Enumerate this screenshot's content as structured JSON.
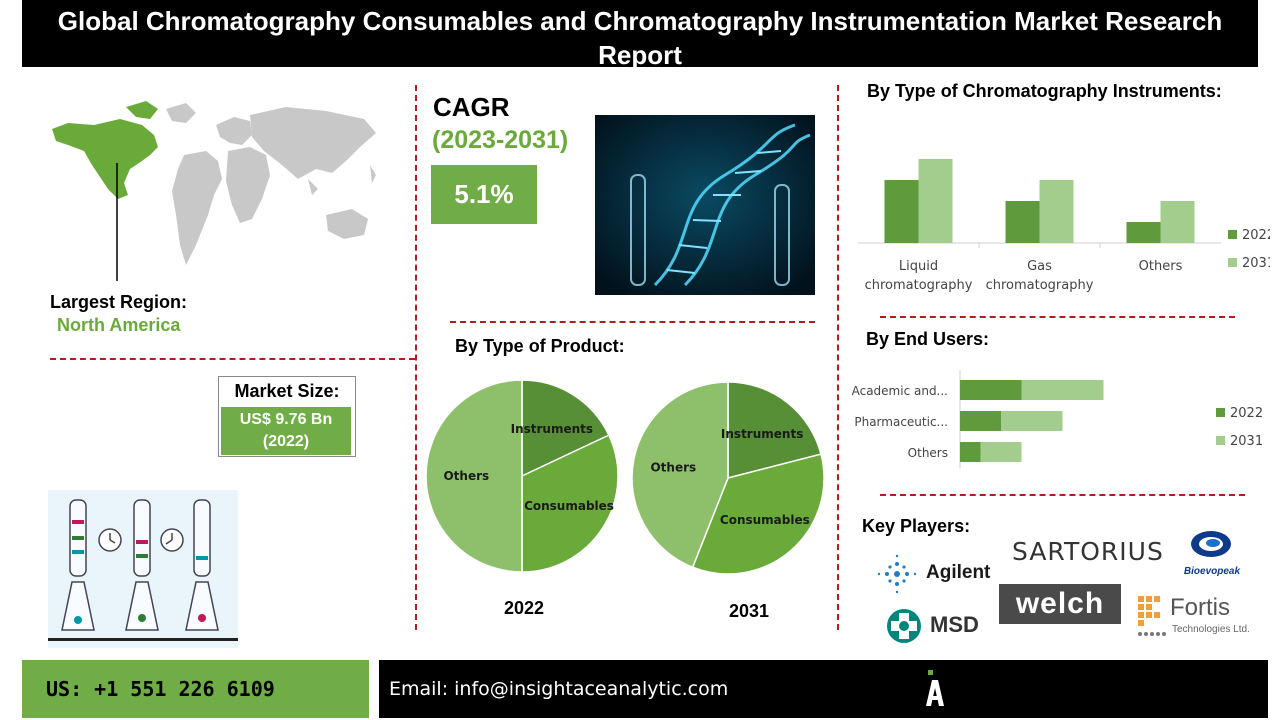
{
  "header": {
    "title": "Global Chromatography Consumables and Chromatography Instrumentation Market Research Report"
  },
  "region": {
    "label": "Largest Region:",
    "value": "North America"
  },
  "market_size": {
    "label": "Market Size:",
    "value_line1": "US$ 9.76 Bn",
    "value_line2": "(2022)"
  },
  "cagr": {
    "label": "CAGR",
    "period": "(2023-2031)",
    "value": "5.1%"
  },
  "sections": {
    "instruments_title": "By Type of Chromatography Instruments:",
    "end_users_title": "By End Users:",
    "product_title": "By Type of Product:",
    "key_players_title": "Key Players:"
  },
  "key_players": [
    {
      "name": "Agilent"
    },
    {
      "name": "SARTORIUS"
    },
    {
      "name": "Bioevopeak"
    },
    {
      "name": "MSD"
    },
    {
      "name": "welch"
    },
    {
      "name": "Fortis",
      "sub": "Technologies Ltd."
    }
  ],
  "colors": {
    "series_2022": "#5f9a3c",
    "series_2031": "#a3cd8d",
    "accent": "#70ad47",
    "divider": "#b01e23"
  },
  "chart_data": [
    {
      "type": "bar",
      "title": "By Type of Chromatography Instruments:",
      "categories": [
        [
          "Liquid",
          "chromatography"
        ],
        [
          "Gas",
          "chromatography"
        ],
        [
          "Others"
        ]
      ],
      "series": [
        {
          "name": "2022",
          "values": [
            3,
            2,
            1
          ]
        },
        {
          "name": "2031",
          "values": [
            4,
            3,
            2
          ]
        }
      ],
      "ylim": [
        0,
        4
      ],
      "grid": false,
      "legend": "right"
    },
    {
      "type": "bar",
      "orientation": "horizontal",
      "stacked": true,
      "title": "By End Users:",
      "categories": [
        "Academic and...",
        "Pharmaceutic...",
        "Others"
      ],
      "series": [
        {
          "name": "2022",
          "values": [
            3,
            2,
            1
          ]
        },
        {
          "name": "2031",
          "values": [
            4,
            3,
            2
          ]
        }
      ],
      "xlim": [
        0,
        7
      ],
      "legend": "right"
    },
    {
      "type": "pie",
      "title": "By Type of Product:",
      "xlabel": "2022",
      "slices": [
        {
          "label": "Instruments",
          "value": 18
        },
        {
          "label": "Consumables",
          "value": 32
        },
        {
          "label": "Others",
          "value": 50
        }
      ]
    },
    {
      "type": "pie",
      "xlabel": "2031",
      "slices": [
        {
          "label": "Instruments",
          "value": 21
        },
        {
          "label": "Consumables",
          "value": 35
        },
        {
          "label": "Others",
          "value": 44
        }
      ]
    }
  ],
  "footer": {
    "phone": "US: +1 551 226 6109",
    "email": "Email: info@insightaceanalytic.com"
  }
}
